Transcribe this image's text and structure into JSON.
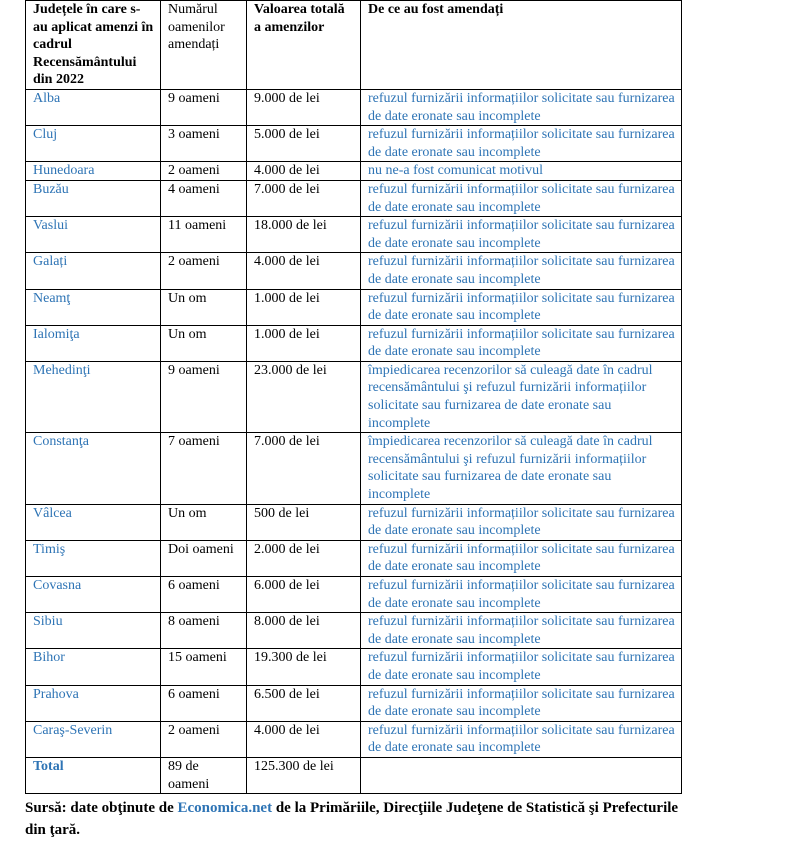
{
  "header": {
    "county": "Județele în care s-au aplicat amenzi în cadrul Recensământului din 2022",
    "people": "Numărul oamenilor amendați",
    "value": "Valoarea totală a amenzilor",
    "reason": "De ce au fost amendați"
  },
  "rows": [
    {
      "county": "Alba",
      "people": "9 oameni",
      "value": "9.000 de lei",
      "reason": "refuzul furnizării informațiilor solicitate sau furnizarea de date eronate sau incomplete"
    },
    {
      "county": "Cluj",
      "people": "3 oameni",
      "value": "5.000 de lei",
      "reason": "refuzul furnizării informațiilor solicitate sau furnizarea de date eronate sau incomplete"
    },
    {
      "county": "Hunedoara",
      "people": "2 oameni",
      "value": "4.000 de lei",
      "reason": "nu ne-a fost comunicat motivul"
    },
    {
      "county": "Buzău",
      "people": "4 oameni",
      "value": "7.000 de lei",
      "reason": "refuzul furnizării informațiilor solicitate sau furnizarea de date eronate sau incomplete"
    },
    {
      "county": "Vaslui",
      "people": "11 oameni",
      "value": "18.000 de lei",
      "reason": "refuzul furnizării informațiilor solicitate sau furnizarea de date eronate sau incomplete"
    },
    {
      "county": "Galați",
      "people": "2 oameni",
      "value": "4.000 de lei",
      "reason": "refuzul furnizării informațiilor solicitate sau furnizarea de date eronate sau incomplete"
    },
    {
      "county": "Neamţ",
      "people": "Un om",
      "value": "1.000 de lei",
      "reason": "refuzul furnizării informațiilor solicitate sau furnizarea de date eronate sau incomplete"
    },
    {
      "county": "Ialomiţa",
      "people": "Un om",
      "value": "1.000 de lei",
      "reason": "refuzul furnizării informațiilor solicitate sau furnizarea de date eronate sau incomplete"
    },
    {
      "county": "Mehedinţi",
      "people": "9 oameni",
      "value": "23.000 de lei",
      "reason": "împiedicarea recenzorilor să culeagă date în cadrul recensământului şi refuzul furnizării informațiilor solicitate sau furnizarea de date eronate sau incomplete"
    },
    {
      "county": "Constanţa",
      "people": "7 oameni",
      "value": "7.000 de lei",
      "reason": "împiedicarea recenzorilor să culeagă date în cadrul recensământului şi refuzul furnizării informațiilor solicitate sau furnizarea de date eronate sau incomplete"
    },
    {
      "county": "Vâlcea",
      "people": "Un om",
      "value": "500 de lei",
      "reason": "refuzul furnizării informațiilor solicitate sau furnizarea de date eronate sau incomplete"
    },
    {
      "county": "Timiş",
      "people": "Doi oameni",
      "value": "2.000 de lei",
      "reason": "refuzul furnizării informațiilor solicitate sau furnizarea de date eronate sau incomplete"
    },
    {
      "county": "Covasna",
      "people": "6 oameni",
      "value": "6.000 de lei",
      "reason": "refuzul furnizării informațiilor solicitate sau furnizarea de date eronate sau incomplete"
    },
    {
      "county": "Sibiu",
      "people": "8 oameni",
      "value": "8.000 de lei",
      "reason": "refuzul furnizării informațiilor solicitate sau furnizarea de date eronate sau incomplete"
    },
    {
      "county": "Bihor",
      "people": "15 oameni",
      "value": "19.300 de lei",
      "reason": "refuzul furnizării informațiilor solicitate sau furnizarea de date eronate sau incomplete"
    },
    {
      "county": "Prahova",
      "people": "6 oameni",
      "value": "6.500 de lei",
      "reason": "refuzul furnizării informațiilor solicitate sau furnizarea de date eronate sau incomplete"
    },
    {
      "county": "Caraş-Severin",
      "people": "2 oameni",
      "value": "4.000 de lei",
      "reason": "refuzul furnizării informațiilor solicitate sau furnizarea de date eronate sau incomplete"
    }
  ],
  "total": {
    "label": "Total",
    "people": "89 de oameni",
    "value": "125.300 de lei"
  },
  "source": {
    "prefix": "Sursă: date obţinute de ",
    "link": "Economica.net",
    "suffix": " de la Primăriile, Direcţiile Judeţene de Statistică şi Prefecturile din ţară."
  },
  "colors": {
    "link": "#2e74b5"
  }
}
